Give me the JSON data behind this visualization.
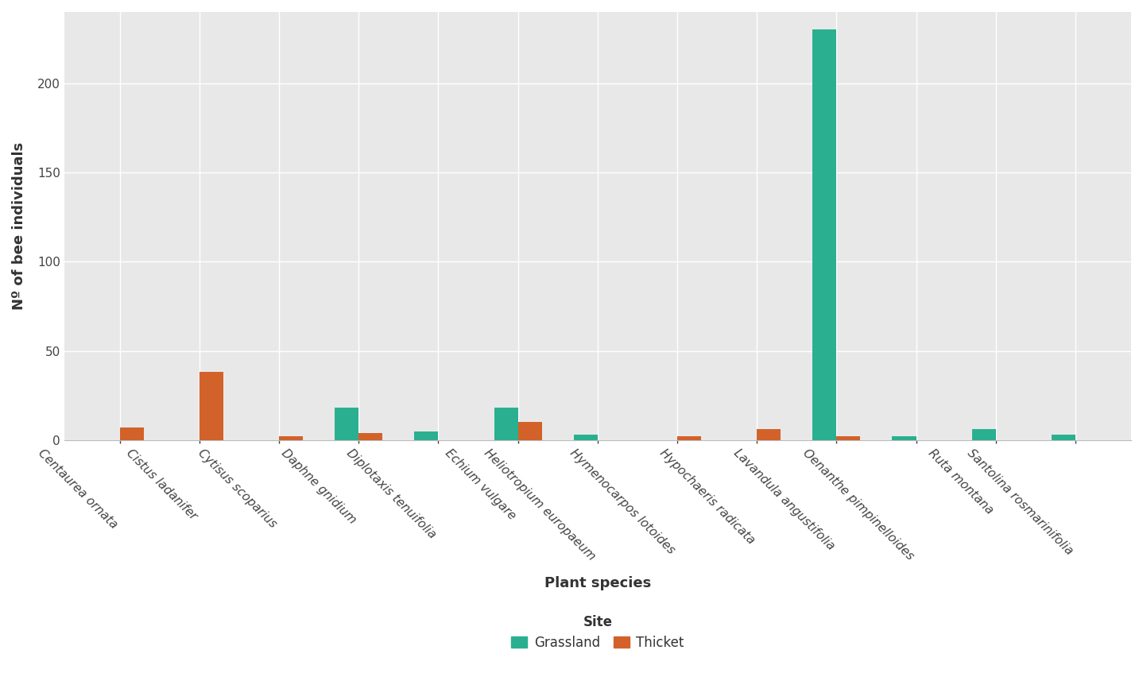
{
  "categories": [
    "Centaurea ornata",
    "Cistus ladanifer",
    "Cytisus scoparius",
    "Daphne gnidium",
    "Diplotaxis tenuifolia",
    "Echium vulgare",
    "Heliotropium europaeum",
    "Hymenocarpos lotoides",
    "Hypochaeris radicata",
    "Lavandula angustifolia",
    "Oenanthe pimpinelloides",
    "Ruta montana",
    "Santolina rosmarinifolia"
  ],
  "grassland": [
    0,
    0,
    0,
    18,
    5,
    18,
    3,
    0,
    0,
    230,
    2,
    6,
    3
  ],
  "thicket": [
    7,
    38,
    2,
    4,
    0,
    10,
    0,
    2,
    6,
    2,
    0,
    0,
    0
  ],
  "grassland_color": "#2ab090",
  "thicket_color": "#d2622a",
  "plot_bg_color": "#e8e8e8",
  "fig_bg_color": "#ffffff",
  "grid_color": "#ffffff",
  "xlabel": "Plant species",
  "ylabel": "Nº of bee individuals",
  "ylabel_fontsize": 13,
  "xlabel_fontsize": 13,
  "tick_fontsize": 11,
  "legend_fontsize": 12,
  "bar_width": 0.3,
  "ylim": [
    0,
    240
  ],
  "yticks": [
    0,
    50,
    100,
    150,
    200
  ]
}
